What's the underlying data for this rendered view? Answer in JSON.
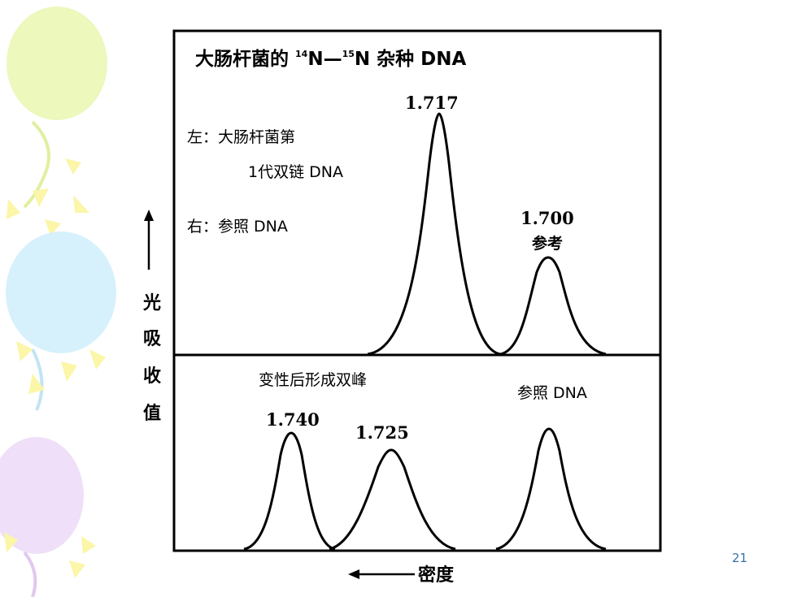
{
  "title": {
    "prefix": "大肠杆菌的 ",
    "sup1": "14",
    "mid": "N—",
    "sup2": "15",
    "suffix": "N 杂种 DNA"
  },
  "upper_panel": {
    "note_left_line1": "左：大肠杆菌第",
    "note_left_line2": "1代双链 DNA",
    "note_right": "右：参照 DNA",
    "peaks": [
      {
        "label": "1.717",
        "density": 1.717,
        "relative_height": 1.0
      },
      {
        "label": "1.700",
        "sublabel": "参考",
        "density": 1.7,
        "relative_height": 0.41
      }
    ]
  },
  "lower_panel": {
    "note_denatured": "变性后形成双峰",
    "note_reference": "参照 DNA",
    "peaks": [
      {
        "label": "1.740",
        "density": 1.74,
        "relative_height": 0.95
      },
      {
        "label": "1.725",
        "density": 1.725,
        "relative_height": 0.83
      },
      {
        "density": 1.7,
        "relative_height": 0.98
      }
    ]
  },
  "y_axis_label": [
    "光",
    "吸",
    "收",
    "值"
  ],
  "x_axis_label": "密度",
  "page_number": "21",
  "colors": {
    "balloon_green": "#e9f7b0",
    "balloon_blue": "#cfeefb",
    "balloon_purple": "#ecd9f7",
    "balloon_yellow": "#fbf6a8"
  }
}
